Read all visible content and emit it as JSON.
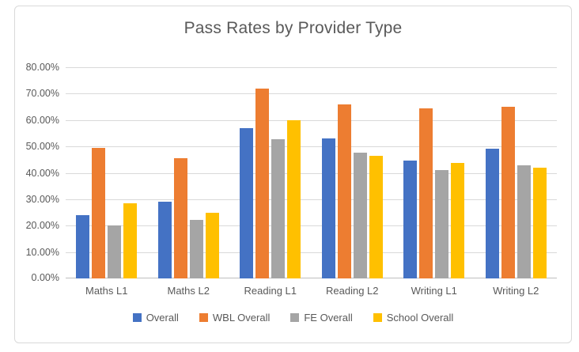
{
  "chart_data": {
    "type": "bar",
    "title": "Pass Rates by Provider Type",
    "categories": [
      "Maths L1",
      "Maths L2",
      "Reading L1",
      "Reading L2",
      "Writing L1",
      "Writing L2"
    ],
    "series": [
      {
        "name": "Overall",
        "color": "#4472C4",
        "values": [
          24,
          29,
          57,
          53,
          44.5,
          49
        ]
      },
      {
        "name": "WBL Overall",
        "color": "#ED7D31",
        "values": [
          49.5,
          45.5,
          72,
          66,
          64.5,
          65
        ]
      },
      {
        "name": "FE Overall",
        "color": "#A5A5A5",
        "values": [
          20,
          22.3,
          52.7,
          47.5,
          41,
          42.8
        ]
      },
      {
        "name": "School Overall",
        "color": "#FFC000",
        "values": [
          28.5,
          25,
          60,
          46.5,
          43.8,
          42
        ]
      }
    ],
    "ylim": [
      0,
      80
    ],
    "y_tick_values": [
      0,
      10,
      20,
      30,
      40,
      50,
      60,
      70,
      80
    ],
    "y_tick_labels": [
      "0.00%",
      "10.00%",
      "20.00%",
      "30.00%",
      "40.00%",
      "50.00%",
      "60.00%",
      "70.00%",
      "80.00%"
    ],
    "grid": true,
    "legend_position": "bottom"
  },
  "colors": {
    "background": "#FFFFFF",
    "frame_border": "#D9D9D9",
    "gridline": "#D9D9D9",
    "axis_line": "#BFBFBF",
    "text": "#595959"
  }
}
